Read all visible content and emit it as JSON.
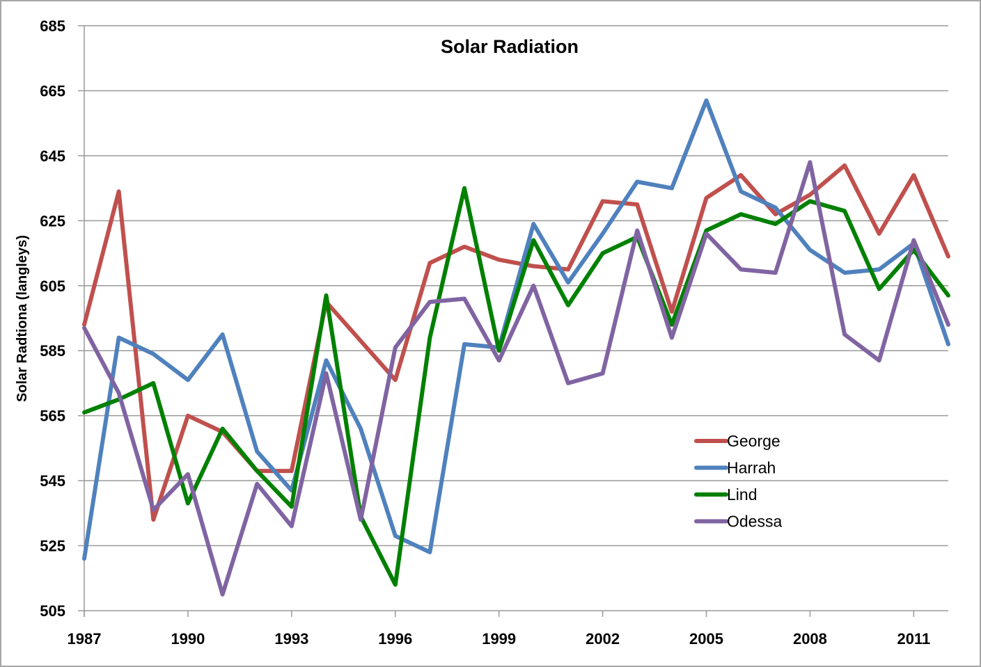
{
  "chart_data": {
    "type": "line",
    "title": "Solar Radiation",
    "xlabel": "",
    "ylabel": "Solar Radtiona (langleys)",
    "ylim": [
      505,
      685
    ],
    "yticks": [
      505,
      525,
      545,
      565,
      585,
      605,
      625,
      645,
      665,
      685
    ],
    "xlim": [
      1987,
      2012
    ],
    "xtick_labels": [
      "1987",
      "1990",
      "1993",
      "1996",
      "1999",
      "2002",
      "2005",
      "2008",
      "2011"
    ],
    "grid": true,
    "legend_position": "bottom-right",
    "x": [
      1987,
      1988,
      1989,
      1990,
      1991,
      1992,
      1993,
      1994,
      1995,
      1996,
      1997,
      1998,
      1999,
      2000,
      2001,
      2002,
      2003,
      2004,
      2005,
      2006,
      2007,
      2008,
      2009,
      2010,
      2011,
      2012
    ],
    "series": [
      {
        "name": "George",
        "color": "#c0504d",
        "values": [
          593,
          634,
          533,
          565,
          560,
          548,
          548,
          600,
          588,
          576,
          612,
          617,
          613,
          611,
          610,
          631,
          630,
          597,
          632,
          639,
          627,
          633,
          642,
          621,
          639,
          614
        ]
      },
      {
        "name": "Harrah",
        "color": "#4f81bd",
        "values": [
          521,
          589,
          584,
          576,
          590,
          554,
          542,
          582,
          561,
          528,
          523,
          587,
          586,
          624,
          606,
          621,
          637,
          635,
          662,
          634,
          629,
          616,
          609,
          610,
          618,
          587
        ]
      },
      {
        "name": "Lind",
        "color": "#008000",
        "values": [
          566,
          570,
          575,
          538,
          561,
          548,
          537,
          602,
          534,
          513,
          589,
          635,
          585,
          619,
          599,
          615,
          620,
          593,
          622,
          627,
          624,
          631,
          628,
          604,
          616,
          602
        ]
      },
      {
        "name": "Odessa",
        "color": "#8064a2",
        "values": [
          592,
          572,
          536,
          547,
          510,
          544,
          531,
          578,
          533,
          586,
          600,
          601,
          582,
          605,
          575,
          578,
          622,
          589,
          621,
          610,
          609,
          643,
          590,
          582,
          619,
          593
        ]
      }
    ]
  }
}
